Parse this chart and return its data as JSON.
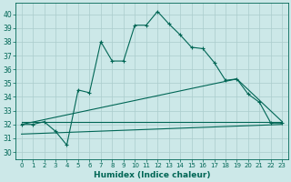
{
  "xlabel": "Humidex (Indice chaleur)",
  "bg_color": "#cce8e8",
  "grid_color": "#aacccc",
  "line_color": "#006655",
  "xlim": [
    -0.5,
    23.5
  ],
  "ylim": [
    29.5,
    40.8
  ],
  "yticks": [
    30,
    31,
    32,
    33,
    34,
    35,
    36,
    37,
    38,
    39,
    40
  ],
  "xticks": [
    0,
    1,
    2,
    3,
    4,
    5,
    6,
    7,
    8,
    9,
    10,
    11,
    12,
    13,
    14,
    15,
    16,
    17,
    18,
    19,
    20,
    21,
    22,
    23
  ],
  "series1_x": [
    0,
    1,
    2,
    3,
    4,
    5,
    6,
    7,
    8,
    9,
    10,
    11,
    12,
    13,
    14,
    15,
    16,
    17,
    18,
    19,
    20,
    21,
    22,
    23
  ],
  "series1_y": [
    32.0,
    32.0,
    32.2,
    31.5,
    30.5,
    34.5,
    34.3,
    38.0,
    36.6,
    36.6,
    39.2,
    39.2,
    40.2,
    39.3,
    38.5,
    37.6,
    37.5,
    36.5,
    35.2,
    35.3,
    34.2,
    33.6,
    32.1,
    32.1
  ],
  "series2_x": [
    0,
    23
  ],
  "series2_y": [
    32.2,
    32.2
  ],
  "series3_x": [
    0,
    19,
    23
  ],
  "series3_y": [
    32.0,
    35.3,
    32.2
  ],
  "series4_x": [
    0,
    23
  ],
  "series4_y": [
    31.3,
    32.0
  ]
}
